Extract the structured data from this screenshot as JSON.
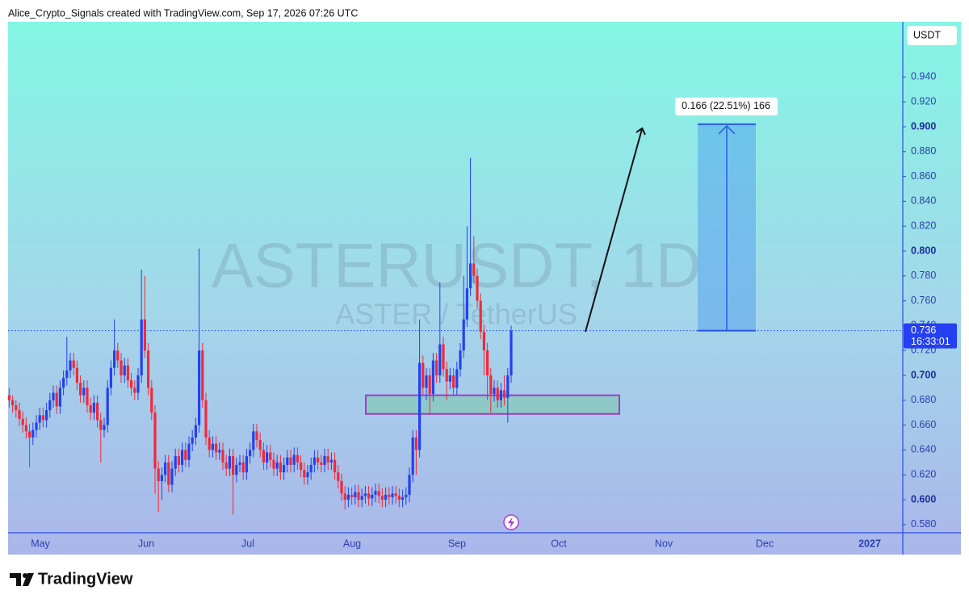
{
  "header": "Alice_Crypto_Signals created with TradingView.com, Sep 17, 2026 07:26 UTC",
  "footer": "TradingView",
  "chart_data": {
    "type": "candlestick",
    "watermark": "ASTERUSDT, 1D",
    "watermark_sub": "ASTER / TetherUS",
    "currency": "USDT",
    "up_color": "#2440f0",
    "down_color": "#f02a3a",
    "ylim": [
      0.5734,
      0.9844
    ],
    "yticks": [
      {
        "value": 0.58,
        "label": "0.580"
      },
      {
        "value": 0.6,
        "label": "0.600"
      },
      {
        "value": 0.62,
        "label": "0.620"
      },
      {
        "value": 0.64,
        "label": "0.640"
      },
      {
        "value": 0.66,
        "label": "0.660"
      },
      {
        "value": 0.68,
        "label": "0.680"
      },
      {
        "value": 0.7,
        "label": "0.700"
      },
      {
        "value": 0.72,
        "label": "0.720"
      },
      {
        "value": 0.74,
        "label": "0.740"
      },
      {
        "value": 0.76,
        "label": "0.760"
      },
      {
        "value": 0.78,
        "label": "0.780"
      },
      {
        "value": 0.8,
        "label": "0.800"
      },
      {
        "value": 0.82,
        "label": "0.820"
      },
      {
        "value": 0.84,
        "label": "0.840"
      },
      {
        "value": 0.86,
        "label": "0.860"
      },
      {
        "value": 0.88,
        "label": "0.880"
      },
      {
        "value": 0.9,
        "label": "0.900"
      },
      {
        "value": 0.92,
        "label": "0.920"
      },
      {
        "value": 0.94,
        "label": "0.940"
      }
    ],
    "x_labels": [
      "May",
      "Jun",
      "Jul",
      "Aug",
      "Sep",
      "Oct",
      "Nov",
      "Dec",
      "2027"
    ],
    "open": [
      0.684,
      0.68,
      0.676,
      0.672,
      0.665,
      0.66,
      0.655,
      0.65,
      0.656,
      0.662,
      0.668,
      0.664,
      0.672,
      0.68,
      0.686,
      0.675,
      0.69,
      0.698,
      0.704,
      0.712,
      0.706,
      0.694,
      0.684,
      0.69,
      0.676,
      0.67,
      0.678,
      0.664,
      0.656,
      0.66,
      0.69,
      0.706,
      0.72,
      0.712,
      0.7,
      0.708,
      0.696,
      0.69,
      0.686,
      0.7,
      0.745,
      0.72,
      0.69,
      0.67,
      0.625,
      0.615,
      0.62,
      0.63,
      0.612,
      0.625,
      0.635,
      0.628,
      0.64,
      0.632,
      0.645,
      0.65,
      0.66,
      0.72,
      0.68,
      0.65,
      0.64,
      0.645,
      0.638,
      0.64,
      0.63,
      0.625,
      0.635,
      0.62,
      0.628,
      0.63,
      0.622,
      0.635,
      0.64,
      0.655,
      0.648,
      0.64,
      0.63,
      0.638,
      0.632,
      0.625,
      0.63,
      0.622,
      0.628,
      0.634,
      0.628,
      0.636,
      0.63,
      0.624,
      0.618,
      0.622,
      0.628,
      0.634,
      0.63,
      0.628,
      0.635,
      0.63,
      0.632,
      0.622,
      0.615,
      0.605,
      0.6,
      0.604,
      0.602,
      0.606,
      0.6,
      0.603,
      0.605,
      0.601,
      0.604,
      0.607,
      0.603,
      0.6,
      0.604,
      0.602,
      0.605,
      0.603,
      0.6,
      0.602,
      0.604,
      0.62,
      0.65,
      0.64,
      0.71,
      0.69,
      0.7,
      0.685,
      0.712,
      0.7,
      0.725,
      0.705,
      0.695,
      0.7,
      0.69,
      0.705,
      0.72,
      0.745,
      0.77,
      0.79,
      0.78,
      0.76,
      0.735,
      0.72,
      0.7,
      0.685,
      0.69,
      0.68,
      0.688,
      0.682,
      0.7
    ],
    "high": [
      0.69,
      0.684,
      0.68,
      0.678,
      0.671,
      0.666,
      0.661,
      0.662,
      0.668,
      0.674,
      0.674,
      0.678,
      0.686,
      0.692,
      0.692,
      0.696,
      0.704,
      0.731,
      0.718,
      0.718,
      0.712,
      0.7,
      0.696,
      0.696,
      0.682,
      0.684,
      0.684,
      0.67,
      0.666,
      0.696,
      0.712,
      0.745,
      0.726,
      0.718,
      0.714,
      0.714,
      0.702,
      0.696,
      0.706,
      0.785,
      0.78,
      0.726,
      0.696,
      0.676,
      0.631,
      0.626,
      0.636,
      0.636,
      0.631,
      0.641,
      0.641,
      0.646,
      0.646,
      0.651,
      0.656,
      0.666,
      0.802,
      0.726,
      0.686,
      0.656,
      0.651,
      0.651,
      0.646,
      0.646,
      0.636,
      0.641,
      0.641,
      0.634,
      0.636,
      0.636,
      0.641,
      0.646,
      0.661,
      0.661,
      0.654,
      0.646,
      0.644,
      0.644,
      0.638,
      0.636,
      0.636,
      0.634,
      0.64,
      0.64,
      0.642,
      0.642,
      0.636,
      0.63,
      0.628,
      0.634,
      0.64,
      0.64,
      0.636,
      0.641,
      0.641,
      0.638,
      0.638,
      0.628,
      0.621,
      0.611,
      0.61,
      0.61,
      0.612,
      0.612,
      0.609,
      0.611,
      0.611,
      0.61,
      0.613,
      0.613,
      0.609,
      0.61,
      0.61,
      0.611,
      0.611,
      0.609,
      0.608,
      0.61,
      0.626,
      0.656,
      0.656,
      0.745,
      0.716,
      0.706,
      0.706,
      0.718,
      0.718,
      0.775,
      0.731,
      0.711,
      0.706,
      0.706,
      0.711,
      0.726,
      0.78,
      0.82,
      0.875,
      0.812,
      0.786,
      0.766,
      0.741,
      0.726,
      0.706,
      0.696,
      0.696,
      0.694,
      0.7,
      0.706,
      0.74
    ],
    "low": [
      0.674,
      0.67,
      0.666,
      0.659,
      0.654,
      0.649,
      0.626,
      0.644,
      0.65,
      0.656,
      0.658,
      0.658,
      0.666,
      0.674,
      0.669,
      0.669,
      0.684,
      0.692,
      0.698,
      0.7,
      0.688,
      0.678,
      0.678,
      0.67,
      0.664,
      0.664,
      0.658,
      0.63,
      0.65,
      0.654,
      0.684,
      0.7,
      0.706,
      0.694,
      0.694,
      0.69,
      0.684,
      0.68,
      0.68,
      0.694,
      0.714,
      0.684,
      0.664,
      0.605,
      0.59,
      0.6,
      0.614,
      0.606,
      0.606,
      0.619,
      0.622,
      0.622,
      0.626,
      0.626,
      0.639,
      0.644,
      0.654,
      0.674,
      0.644,
      0.634,
      0.634,
      0.632,
      0.632,
      0.624,
      0.619,
      0.619,
      0.588,
      0.614,
      0.622,
      0.616,
      0.616,
      0.629,
      0.634,
      0.642,
      0.634,
      0.624,
      0.624,
      0.626,
      0.619,
      0.619,
      0.616,
      0.616,
      0.622,
      0.622,
      0.622,
      0.624,
      0.618,
      0.612,
      0.612,
      0.616,
      0.622,
      0.624,
      0.622,
      0.622,
      0.624,
      0.624,
      0.616,
      0.609,
      0.599,
      0.592,
      0.594,
      0.596,
      0.596,
      0.594,
      0.594,
      0.597,
      0.595,
      0.595,
      0.598,
      0.597,
      0.594,
      0.594,
      0.596,
      0.596,
      0.597,
      0.594,
      0.594,
      0.596,
      0.598,
      0.614,
      0.62,
      0.634,
      0.684,
      0.68,
      0.668,
      0.679,
      0.694,
      0.694,
      0.699,
      0.68,
      0.689,
      0.684,
      0.684,
      0.699,
      0.714,
      0.739,
      0.764,
      0.774,
      0.754,
      0.729,
      0.7,
      0.68,
      0.67,
      0.679,
      0.674,
      0.674,
      0.676,
      0.662,
      0.694
    ],
    "close": [
      0.68,
      0.676,
      0.672,
      0.665,
      0.66,
      0.655,
      0.65,
      0.656,
      0.662,
      0.668,
      0.664,
      0.672,
      0.68,
      0.686,
      0.675,
      0.69,
      0.698,
      0.704,
      0.712,
      0.706,
      0.694,
      0.684,
      0.69,
      0.676,
      0.67,
      0.678,
      0.664,
      0.656,
      0.66,
      0.69,
      0.706,
      0.72,
      0.712,
      0.7,
      0.708,
      0.696,
      0.69,
      0.686,
      0.7,
      0.745,
      0.72,
      0.69,
      0.67,
      0.625,
      0.615,
      0.62,
      0.63,
      0.612,
      0.625,
      0.635,
      0.628,
      0.64,
      0.632,
      0.645,
      0.65,
      0.66,
      0.72,
      0.68,
      0.65,
      0.64,
      0.645,
      0.638,
      0.64,
      0.63,
      0.625,
      0.635,
      0.62,
      0.628,
      0.63,
      0.622,
      0.635,
      0.64,
      0.655,
      0.648,
      0.64,
      0.63,
      0.638,
      0.632,
      0.625,
      0.63,
      0.622,
      0.628,
      0.634,
      0.628,
      0.636,
      0.63,
      0.624,
      0.618,
      0.622,
      0.628,
      0.634,
      0.63,
      0.628,
      0.635,
      0.63,
      0.632,
      0.622,
      0.615,
      0.605,
      0.6,
      0.604,
      0.602,
      0.606,
      0.6,
      0.603,
      0.605,
      0.601,
      0.604,
      0.607,
      0.603,
      0.6,
      0.604,
      0.602,
      0.605,
      0.603,
      0.6,
      0.602,
      0.604,
      0.62,
      0.65,
      0.64,
      0.71,
      0.69,
      0.7,
      0.685,
      0.712,
      0.7,
      0.725,
      0.705,
      0.695,
      0.7,
      0.69,
      0.705,
      0.72,
      0.745,
      0.77,
      0.79,
      0.78,
      0.76,
      0.735,
      0.72,
      0.7,
      0.685,
      0.69,
      0.68,
      0.688,
      0.682,
      0.7,
      0.736
    ],
    "last_price": {
      "value": 0.736,
      "countdown": "16:33:01"
    },
    "measure": {
      "from": 0.736,
      "to": 0.902,
      "label": "0.166 (22.51%) 166"
    },
    "zone": [
      0.669,
      0.684
    ]
  }
}
